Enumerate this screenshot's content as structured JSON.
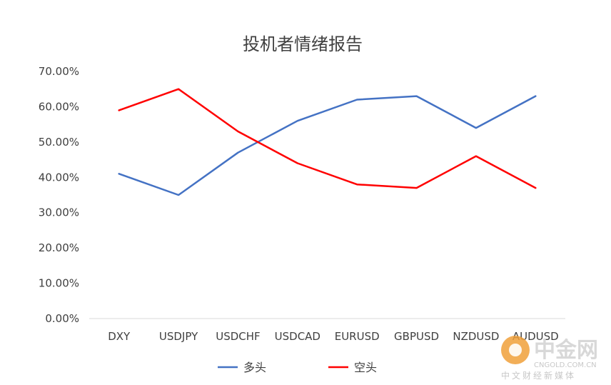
{
  "chart_data": {
    "type": "line",
    "title": "投机者情绪报告",
    "categories": [
      "DXY",
      "USDJPY",
      "USDCHF",
      "USDCAD",
      "EURUSD",
      "GBPUSD",
      "NZDUSD",
      "AUDUSD"
    ],
    "y_ticks": [
      "0.00%",
      "10.00%",
      "20.00%",
      "30.00%",
      "40.00%",
      "50.00%",
      "60.00%",
      "70.00%"
    ],
    "ylim": [
      0,
      70
    ],
    "grid": false,
    "legend_position": "bottom",
    "series": [
      {
        "name": "多头",
        "color": "#4472C4",
        "values": [
          41,
          35,
          47,
          56,
          62,
          63,
          54,
          63
        ]
      },
      {
        "name": "空头",
        "color": "#FF0000",
        "values": [
          59,
          65,
          53,
          44,
          38,
          37,
          46,
          37
        ]
      }
    ]
  },
  "watermark": {
    "brand": "中金网",
    "domain": "CNGOLD.COM.CN",
    "tagline": "中文财经新媒体"
  }
}
